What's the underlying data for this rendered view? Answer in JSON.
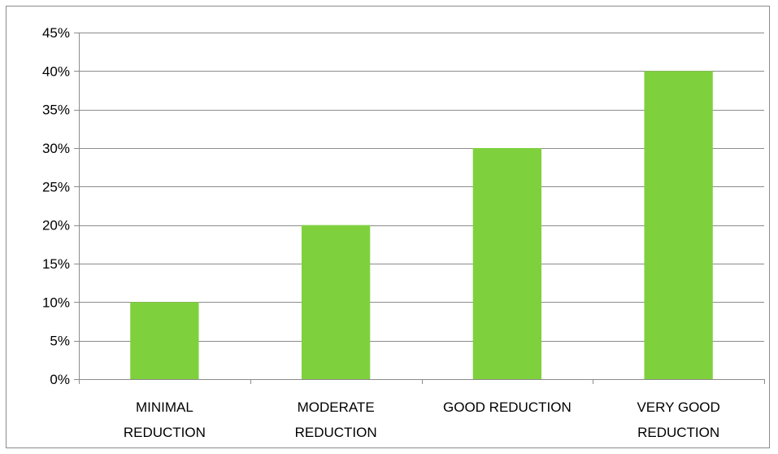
{
  "chart_data": {
    "type": "bar",
    "categories": [
      [
        "MINIMAL",
        "REDUCTION"
      ],
      [
        "MODERATE",
        "REDUCTION"
      ],
      [
        "GOOD REDUCTION"
      ],
      [
        "VERY GOOD",
        "REDUCTION"
      ]
    ],
    "values": [
      10,
      20,
      30,
      40
    ],
    "ylim": [
      0,
      45
    ],
    "yticks": [
      0,
      5,
      10,
      15,
      20,
      25,
      30,
      35,
      40,
      45
    ],
    "ytick_labels": [
      "0%",
      "5%",
      "10%",
      "15%",
      "20%",
      "25%",
      "30%",
      "35%",
      "40%",
      "45%"
    ],
    "grid": true,
    "title": "",
    "xlabel": "",
    "ylabel": "",
    "colors": {
      "bar": "#7ED13C",
      "grid": "#8c8c8c",
      "axis": "#8c8c8c"
    }
  }
}
